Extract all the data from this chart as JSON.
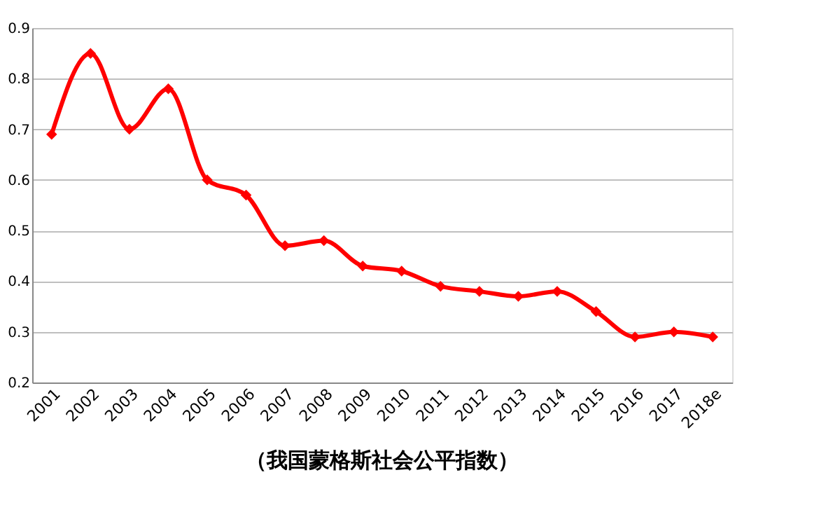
{
  "chart_data": {
    "type": "line",
    "title": "（我国蒙格斯社会公平指数）",
    "categories": [
      "2001",
      "2002",
      "2003",
      "2004",
      "2005",
      "2006",
      "2007",
      "2008",
      "2009",
      "2010",
      "2011",
      "2012",
      "2013",
      "2014",
      "2015",
      "2016",
      "2017",
      "2018e"
    ],
    "series": [
      {
        "color": "#ff0000",
        "values": [
          0.69,
          0.85,
          0.7,
          0.78,
          0.6,
          0.57,
          0.47,
          0.48,
          0.43,
          0.42,
          0.39,
          0.38,
          0.37,
          0.38,
          0.34,
          0.29,
          0.3,
          0.29
        ]
      }
    ],
    "ylim": [
      0.2,
      0.9
    ],
    "yticks": [
      0.2,
      0.3,
      0.4,
      0.5,
      0.6,
      0.7,
      0.8,
      0.9
    ],
    "grid": "y",
    "marker": "diamond",
    "line_style": "solid"
  }
}
